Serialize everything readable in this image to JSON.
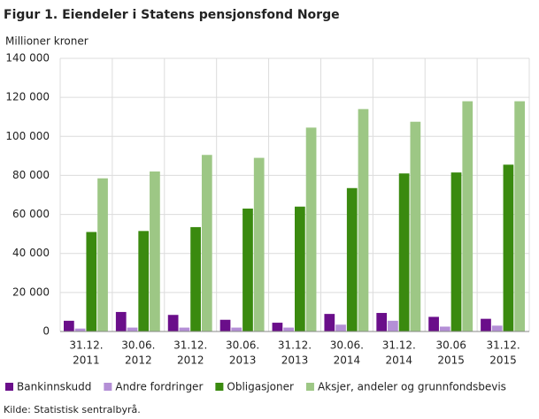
{
  "chart_data": {
    "type": "bar",
    "title": "Figur 1. Eiendeler i Statens pensjonsfond Norge",
    "y_label": "Millioner  kroner",
    "source": "Kilde: Statistisk sentralbyrå.",
    "categories": [
      [
        "31.12.",
        "2011"
      ],
      [
        "30.06.",
        "2012"
      ],
      [
        "31.12.",
        "2012"
      ],
      [
        "30.06.",
        "2013"
      ],
      [
        "31.12.",
        "2013"
      ],
      [
        "30.06.",
        "2014"
      ],
      [
        "31.12.",
        "2014"
      ],
      [
        "30.06",
        "2015"
      ],
      [
        "31.12.",
        "2015"
      ]
    ],
    "series": [
      {
        "name": "Bankinnskudd",
        "color": "#6a0e8a",
        "values": [
          5500,
          10000,
          8500,
          6000,
          4500,
          9000,
          9500,
          7500,
          6500
        ]
      },
      {
        "name": "Andre fordringer",
        "color": "#b48fd6",
        "values": [
          1500,
          2000,
          2000,
          2000,
          2000,
          3500,
          5500,
          2500,
          3000
        ]
      },
      {
        "name": "Obligasjoner",
        "color": "#3a8a0f",
        "values": [
          51000,
          51500,
          53500,
          63000,
          64000,
          73500,
          81000,
          81500,
          85500
        ]
      },
      {
        "name": "Aksjer, andeler og grunnfondsbevis",
        "color": "#9dc785",
        "values": [
          78500,
          82000,
          90500,
          89000,
          104500,
          114000,
          107500,
          118000,
          118000
        ]
      }
    ],
    "ylim": [
      0,
      140000
    ],
    "yticks": [
      0,
      {
        "value": 20000,
        "label": "20 000"
      },
      {
        "value": 40000,
        "label": "40 000"
      },
      {
        "value": 60000,
        "label": "60 000"
      },
      {
        "value": 80000,
        "label": "80 000"
      },
      {
        "value": 100000,
        "label": "100 000"
      },
      {
        "value": 120000,
        "label": "120 000"
      },
      {
        "value": 140000,
        "label": "140 000"
      }
    ],
    "grid": true
  }
}
